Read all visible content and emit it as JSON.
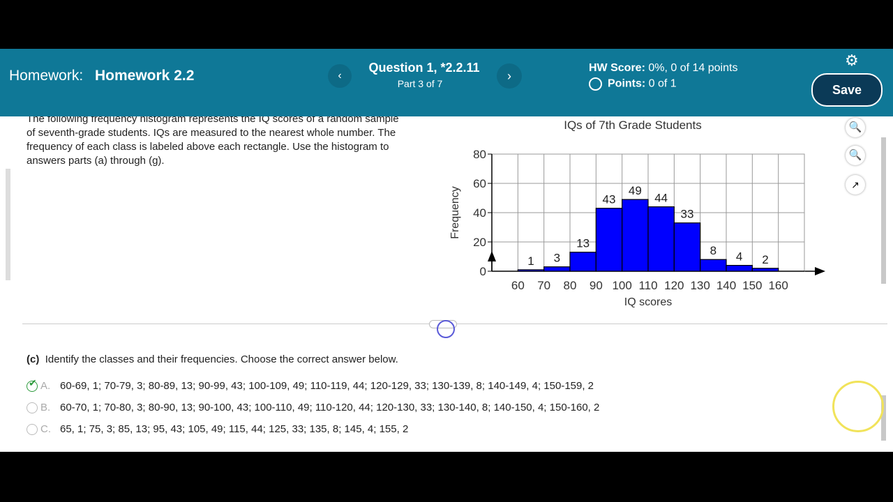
{
  "header": {
    "label": "Homework:",
    "title": "Homework 2.2",
    "question": "Question 1, *2.2.11",
    "part": "Part 3 of 7",
    "hw_score_label": "HW Score:",
    "hw_score": "0%, 0 of 14 points",
    "points_label": "Points:",
    "points": "0 of 1",
    "save": "Save"
  },
  "problem": {
    "text": "The following frequency histogram represents the IQ scores of a random sample of seventh-grade students. IQs are measured to the nearest whole number. The frequency of each class is labeled above each rectangle. Use the histogram to answers parts (a) through (g)."
  },
  "chart_data": {
    "type": "histogram",
    "title": "IQs of 7th Grade Students",
    "xlabel": "IQ scores",
    "ylabel": "Frequency",
    "bins": [
      60,
      70,
      80,
      90,
      100,
      110,
      120,
      130,
      140,
      150,
      160
    ],
    "values": [
      1,
      3,
      13,
      43,
      49,
      44,
      33,
      8,
      4,
      2
    ],
    "color": "#0000ff",
    "xlim": [
      50,
      170
    ],
    "ylim": [
      0,
      80
    ],
    "xticks": [
      60,
      70,
      80,
      90,
      100,
      110,
      120,
      130,
      140,
      150,
      160
    ],
    "yticks": [
      0,
      20,
      40,
      60,
      80
    ],
    "grid": true
  },
  "question": {
    "part": "(c)",
    "prompt": "Identify the classes and their frequencies. Choose the correct answer below.",
    "options": [
      {
        "letter": "A.",
        "text": "60-69, 1; 70-79, 3; 80-89, 13; 90-99, 43; 100-109, 49; 110-119, 44; 120-129, 33; 130-139, 8; 140-149, 4; 150-159, 2"
      },
      {
        "letter": "B.",
        "text": "60-70, 1; 70-80, 3; 80-90, 13; 90-100, 43; 100-110, 49; 110-120, 44; 120-130, 33; 130-140, 8; 140-150, 4; 150-160, 2"
      },
      {
        "letter": "C.",
        "text": "65, 1; 75, 3; 85, 13; 95, 43; 105, 49; 115, 44; 125, 33; 135, 8; 145, 4; 155, 2"
      }
    ]
  }
}
